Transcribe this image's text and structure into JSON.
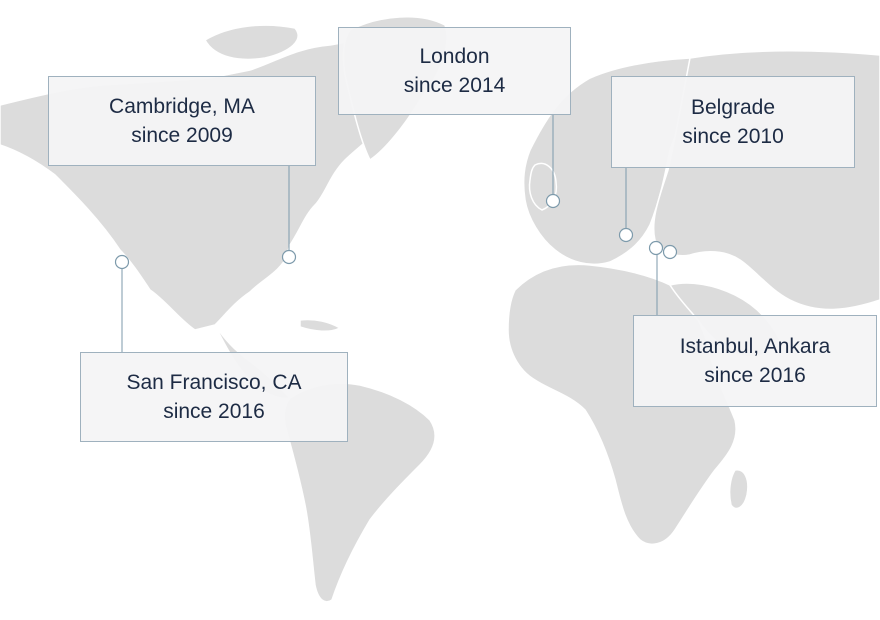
{
  "map": {
    "land_color": "#dcdcdc",
    "connector_color": "#7d9aab",
    "text_color": "#1d2b44",
    "offices": [
      {
        "city": "Cambridge, MA",
        "since": "since 2009"
      },
      {
        "city": "London",
        "since": "since 2014"
      },
      {
        "city": "Belgrade",
        "since": "since 2010"
      },
      {
        "city": "San Francisco, CA",
        "since": "since 2016"
      },
      {
        "city": "Istanbul, Ankara",
        "since": "since 2016"
      }
    ]
  }
}
